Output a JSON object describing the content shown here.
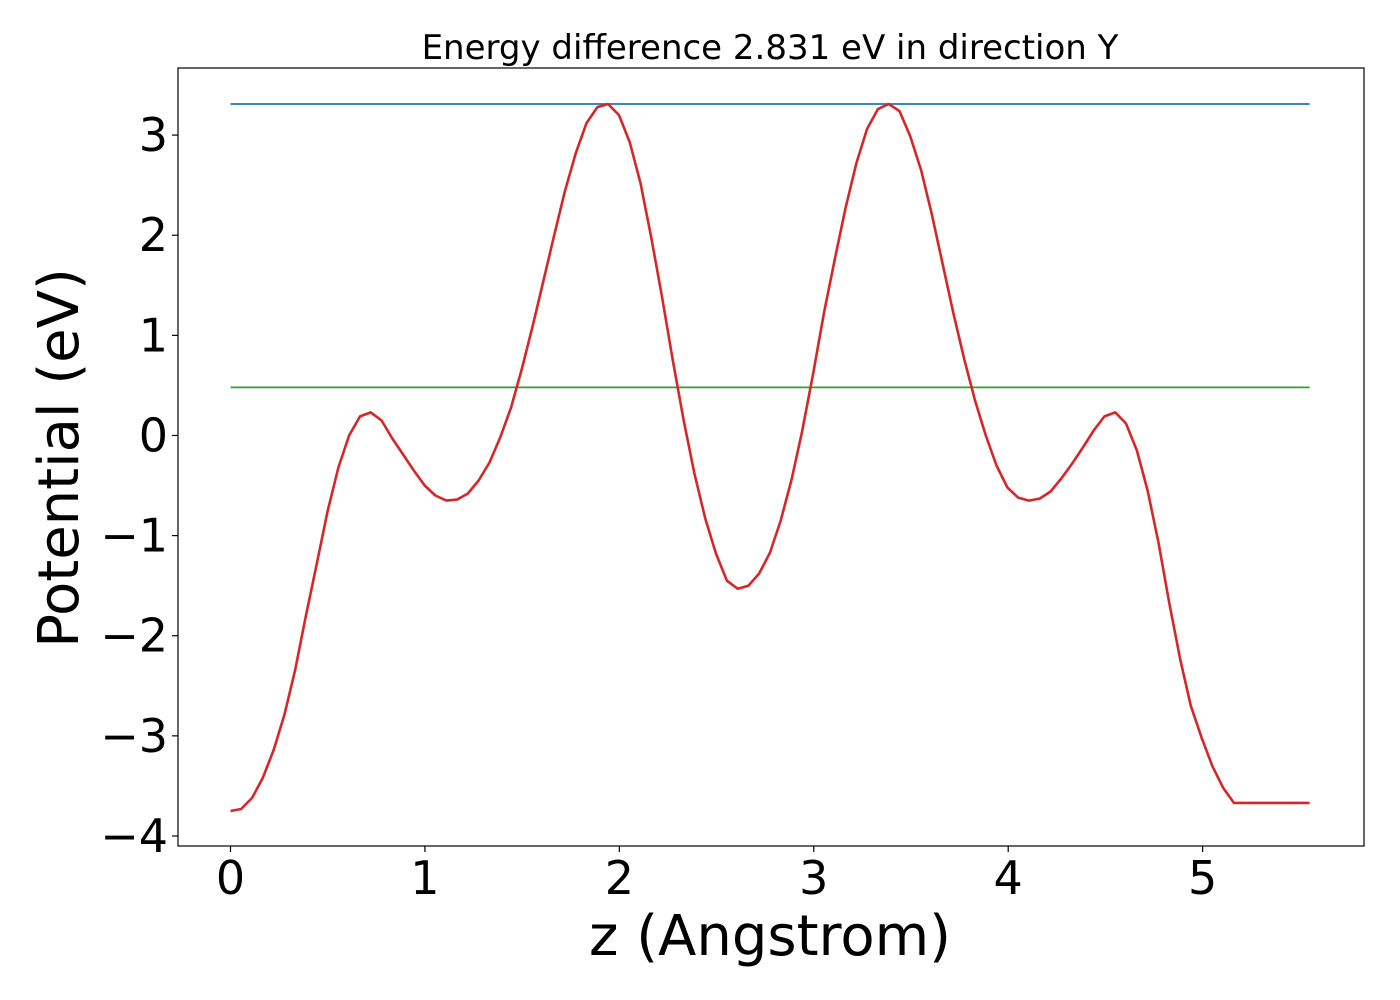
{
  "chart_data": {
    "type": "line",
    "title": "Energy difference 2.831 eV in direction Y",
    "xlabel": "z (Angstrom)",
    "ylabel": "Potential (eV)",
    "xlim": [
      -0.27,
      5.83
    ],
    "ylim": [
      -4.1,
      3.67
    ],
    "xticks": [
      0,
      1,
      2,
      3,
      4,
      5
    ],
    "xtick_labels": [
      "0",
      "1",
      "2",
      "3",
      "4",
      "5"
    ],
    "yticks": [
      -4,
      -3,
      -2,
      -1,
      0,
      1,
      2,
      3
    ],
    "ytick_labels": [
      "−4",
      "−3",
      "−2",
      "−1",
      "0",
      "1",
      "2",
      "3"
    ],
    "grid": false,
    "series": [
      {
        "color": "#d62728",
        "x": [
          0.0,
          0.055,
          0.111,
          0.166,
          0.222,
          0.277,
          0.333,
          0.388,
          0.444,
          0.499,
          0.555,
          0.61,
          0.666,
          0.721,
          0.777,
          0.832,
          0.888,
          0.943,
          0.999,
          1.054,
          1.11,
          1.165,
          1.221,
          1.276,
          1.332,
          1.387,
          1.443,
          1.498,
          1.554,
          1.609,
          1.665,
          1.72,
          1.776,
          1.831,
          1.887,
          1.942,
          1.998,
          2.053,
          2.109,
          2.164,
          2.22,
          2.275,
          2.331,
          2.386,
          2.442,
          2.497,
          2.553,
          2.608,
          2.664,
          2.719,
          2.775,
          2.83,
          2.886,
          2.941,
          2.997,
          3.052,
          3.108,
          3.163,
          3.219,
          3.274,
          3.33,
          3.385,
          3.441,
          3.496,
          3.552,
          3.607,
          3.663,
          3.718,
          3.774,
          3.829,
          3.885,
          3.94,
          3.996,
          4.051,
          4.107,
          4.162,
          4.218,
          4.273,
          4.329,
          4.384,
          4.44,
          4.495,
          4.551,
          4.606,
          4.662,
          4.717,
          4.773,
          4.828,
          4.884,
          4.939,
          4.995,
          5.05,
          5.106,
          5.161,
          5.217,
          5.272,
          5.328,
          5.383,
          5.439,
          5.494,
          5.55
        ],
        "y": [
          -3.75,
          -3.73,
          -3.62,
          -3.42,
          -3.14,
          -2.79,
          -2.34,
          -1.8,
          -1.28,
          -0.76,
          -0.32,
          0.0,
          0.19,
          0.23,
          0.15,
          -0.03,
          -0.19,
          -0.35,
          -0.5,
          -0.6,
          -0.65,
          -0.64,
          -0.58,
          -0.45,
          -0.27,
          -0.02,
          0.28,
          0.66,
          1.09,
          1.54,
          2.0,
          2.44,
          2.82,
          3.12,
          3.28,
          3.31,
          3.2,
          2.93,
          2.52,
          1.98,
          1.38,
          0.75,
          0.15,
          -0.38,
          -0.83,
          -1.18,
          -1.45,
          -1.53,
          -1.5,
          -1.38,
          -1.17,
          -0.85,
          -0.44,
          0.05,
          0.62,
          1.22,
          1.76,
          2.27,
          2.72,
          3.06,
          3.26,
          3.31,
          3.24,
          2.99,
          2.65,
          2.21,
          1.71,
          1.22,
          0.76,
          0.35,
          0.0,
          -0.3,
          -0.52,
          -0.62,
          -0.65,
          -0.63,
          -0.56,
          -0.43,
          -0.28,
          -0.12,
          0.05,
          0.19,
          0.23,
          0.12,
          -0.15,
          -0.55,
          -1.07,
          -1.67,
          -2.23,
          -2.7,
          -3.02,
          -3.3,
          -3.52,
          -3.67,
          -3.67,
          -3.67,
          -3.67,
          -3.67,
          -3.67,
          -3.67,
          -3.67
        ]
      },
      {
        "color": "#1f77b4",
        "x": [
          0.0,
          5.55
        ],
        "y": [
          3.31,
          3.31
        ]
      },
      {
        "color": "#2ca02c",
        "x": [
          0.0,
          5.55
        ],
        "y": [
          0.48,
          0.48
        ]
      }
    ]
  }
}
